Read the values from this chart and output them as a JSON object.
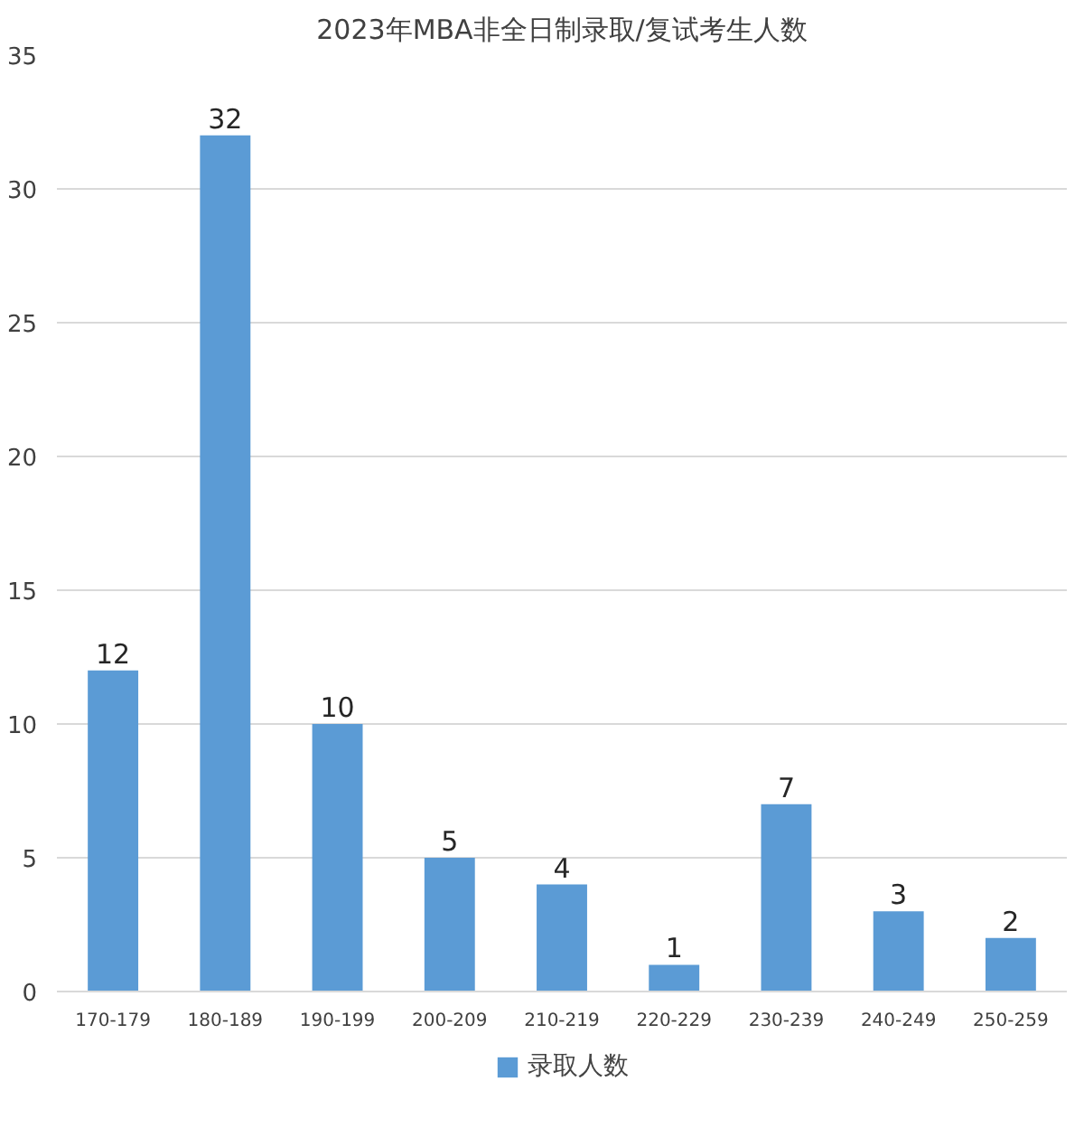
{
  "chart_data": {
    "type": "bar",
    "title": "2023年MBA非全日制录取/复试考生人数",
    "categories": [
      "170-179",
      "180-189",
      "190-199",
      "200-209",
      "210-219",
      "220-229",
      "230-239",
      "240-249",
      "250-259"
    ],
    "series": [
      {
        "name": "录取人数",
        "color": "#5b9bd5",
        "values": [
          12,
          32,
          10,
          5,
          4,
          1,
          7,
          3,
          2
        ]
      }
    ],
    "ylim": [
      0,
      35
    ],
    "yticks": [
      0,
      5,
      10,
      15,
      20,
      25,
      30,
      35
    ],
    "grid": "y",
    "legend": "bottom",
    "data_labels": true
  }
}
